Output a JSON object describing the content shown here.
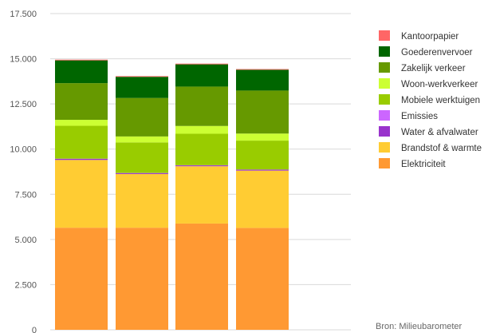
{
  "chart_data": {
    "type": "bar",
    "stacked": true,
    "categories": [
      "",
      "",
      "",
      ""
    ],
    "ylim": [
      0,
      17500
    ],
    "y_ticks": [
      "0",
      "2.500",
      "5.000",
      "7.500",
      "10.000",
      "12.500",
      "15.000",
      "17.500"
    ],
    "y_tick_values": [
      0,
      2500,
      5000,
      7500,
      10000,
      12500,
      15000,
      17500
    ],
    "grid": true,
    "legend_position": "right",
    "series": [
      {
        "name": "Elektriciteit",
        "color": "#ff9933",
        "values": [
          5650,
          5650,
          5880,
          5640
        ]
      },
      {
        "name": "Brandstof & warmte",
        "color": "#ffcc33",
        "values": [
          3750,
          2970,
          3170,
          3170
        ]
      },
      {
        "name": "Water & afvalwater",
        "color": "#9933cc",
        "values": [
          60,
          50,
          50,
          50
        ]
      },
      {
        "name": "Emissies",
        "color": "#cc66ff",
        "values": [
          10,
          10,
          10,
          10
        ]
      },
      {
        "name": "Mobiele werktuigen",
        "color": "#99cc00",
        "values": [
          1820,
          1690,
          1740,
          1600
        ]
      },
      {
        "name": "Woon-werkverkeer",
        "color": "#ccff33",
        "values": [
          330,
          330,
          430,
          390
        ]
      },
      {
        "name": "Zakelijk verkeer",
        "color": "#669900",
        "values": [
          2030,
          2130,
          2180,
          2380
        ]
      },
      {
        "name": "Goederenvervoer",
        "color": "#006600",
        "values": [
          1260,
          1170,
          1230,
          1150
        ]
      },
      {
        "name": "Kantoorpapier",
        "color": "#ff6666",
        "values": [
          40,
          40,
          40,
          40
        ]
      }
    ],
    "legend_order": [
      "Kantoorpapier",
      "Goederenvervoer",
      "Zakelijk verkeer",
      "Woon-werkverkeer",
      "Mobiele werktuigen",
      "Emissies",
      "Water & afvalwater",
      "Brandstof & warmte",
      "Elektriciteit"
    ],
    "source": "Bron: Milieubarometer"
  }
}
